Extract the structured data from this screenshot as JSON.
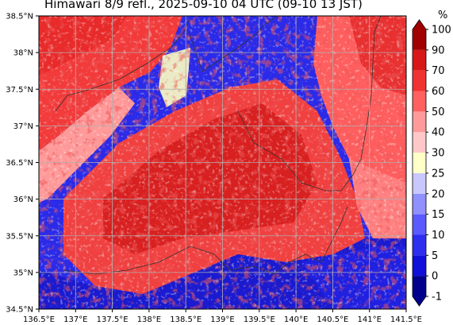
{
  "title": "Himawari 8/9 refl., 2025-09-10 04 UTC (09-10 13 JST)",
  "x_axis": {
    "ticks": [
      "136.5°E",
      "137°E",
      "137.5°E",
      "138°E",
      "138.5°E",
      "139°E",
      "139.5°E",
      "140°E",
      "140.5°E",
      "141°E",
      "141.5°E"
    ]
  },
  "y_axis": {
    "ticks": [
      "38.5°N",
      "38°N",
      "37.5°N",
      "37°N",
      "36.5°N",
      "36°N",
      "35.5°N",
      "35°N",
      "34.5°N"
    ]
  },
  "colorbar": {
    "unit": "%",
    "levels": [
      "-1",
      "0",
      "5",
      "10",
      "15",
      "20",
      "25",
      "30",
      "40",
      "50",
      "60",
      "70",
      "90",
      "100"
    ],
    "colors": [
      "#00008c",
      "#1010d8",
      "#2e2ef0",
      "#5a5aff",
      "#9090ff",
      "#c8c8ff",
      "#ffffc8",
      "#ffc8c8",
      "#ff9a9a",
      "#ff6060",
      "#f03232",
      "#d81818",
      "#a00000"
    ]
  },
  "grid": true
}
